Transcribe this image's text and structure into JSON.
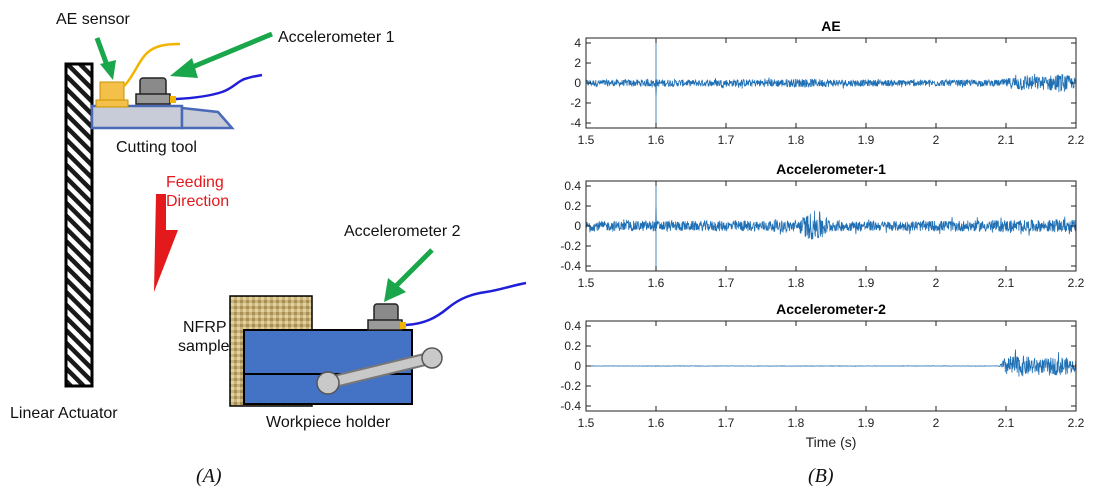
{
  "diagram": {
    "labels": {
      "ae_sensor": "AE sensor",
      "accelerometer_1": "Accelerometer 1",
      "cutting_tool": "Cutting tool",
      "feeding_direction_line1": "Feeding",
      "feeding_direction_line2": "Direction",
      "accelerometer_2": "Accelerometer 2",
      "nfrp_line1": "NFRP",
      "nfrp_line2": "sample",
      "linear_actuator": "Linear Actuator",
      "workpiece_holder": "Workpiece holder"
    },
    "caption": "(A)",
    "colors": {
      "arrow_green": "#1aa64a",
      "feed_red": "#e4191c",
      "holder_blue": "#4472c4",
      "tool_gray": "#c8ccd8",
      "sensor_orange": "#f5c04a",
      "cable_blue": "#1f1fd8",
      "cable_orange": "#f3b400"
    }
  },
  "plots": {
    "caption": "(B)",
    "xlabel": "Time (s)",
    "x_ticks": [
      "1.5",
      "1.6",
      "1.7",
      "1.8",
      "1.9",
      "2",
      "2.1",
      "2.2"
    ],
    "line_color": "#1f6fb4",
    "panels": [
      {
        "title": "AE",
        "y_ticks": [
          "4",
          "2",
          "0",
          "-2",
          "-4"
        ]
      },
      {
        "title": "Accelerometer-1",
        "y_ticks": [
          "0.4",
          "0.2",
          "0",
          "-0.2",
          "-0.4"
        ]
      },
      {
        "title": "Accelerometer-2",
        "y_ticks": [
          "0.4",
          "0.2",
          "0",
          "-0.2",
          "-0.4"
        ]
      }
    ]
  },
  "chart_data": [
    {
      "type": "line",
      "title": "AE",
      "xlabel": "",
      "ylabel": "",
      "xlim": [
        1.5,
        2.2
      ],
      "ylim": [
        -4.5,
        4.5
      ],
      "series": [
        {
          "x": [
            1.5,
            1.55,
            1.599,
            1.6,
            1.601,
            1.65,
            1.7,
            1.75,
            1.8,
            1.85,
            1.9,
            1.95,
            2.0,
            2.05,
            2.09,
            2.1,
            2.12,
            2.15,
            2.18,
            2.2
          ],
          "y_envelope": [
            0.6,
            0.6,
            0.7,
            4.3,
            0.7,
            0.6,
            0.7,
            0.7,
            0.8,
            0.7,
            0.6,
            0.6,
            0.6,
            0.6,
            0.6,
            0.8,
            1.5,
            1.2,
            1.8,
            0.9
          ]
        }
      ]
    },
    {
      "type": "line",
      "title": "Accelerometer-1",
      "xlabel": "",
      "ylabel": "",
      "xlim": [
        1.5,
        2.2
      ],
      "ylim": [
        -0.45,
        0.45
      ],
      "series": [
        {
          "x": [
            1.5,
            1.55,
            1.599,
            1.6,
            1.601,
            1.65,
            1.7,
            1.75,
            1.8,
            1.83,
            1.85,
            1.9,
            1.95,
            2.0,
            2.05,
            2.1,
            2.15,
            2.2
          ],
          "y_envelope": [
            0.09,
            0.09,
            0.1,
            0.43,
            0.1,
            0.09,
            0.1,
            0.1,
            0.11,
            0.3,
            0.1,
            0.09,
            0.09,
            0.1,
            0.1,
            0.11,
            0.11,
            0.12
          ]
        }
      ]
    },
    {
      "type": "line",
      "title": "Accelerometer-2",
      "xlabel": "Time (s)",
      "ylabel": "",
      "xlim": [
        1.5,
        2.2
      ],
      "ylim": [
        -0.45,
        0.45
      ],
      "series": [
        {
          "x": [
            1.5,
            1.6,
            1.7,
            1.8,
            1.9,
            2.0,
            2.09,
            2.1,
            2.12,
            2.15,
            2.18,
            2.2
          ],
          "y_envelope": [
            0.003,
            0.003,
            0.003,
            0.003,
            0.003,
            0.003,
            0.003,
            0.18,
            0.2,
            0.13,
            0.18,
            0.1
          ]
        }
      ]
    }
  ]
}
